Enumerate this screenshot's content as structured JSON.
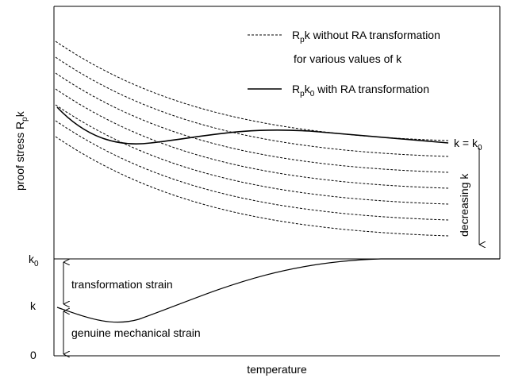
{
  "legend": {
    "dashed": {
      "main": "R",
      "sub": "p",
      "tail": "k  without RA transformation"
    },
    "dashed_second_line": "for various values of  k",
    "solid": {
      "main": "R",
      "sub": "p",
      "mid": "k",
      "sub2": "0",
      "tail": "  with RA transformation"
    }
  },
  "y_axis_label": {
    "main": "proof stress  R",
    "sub": "p",
    "tail": "k"
  },
  "curve_label": {
    "main": "k = k",
    "sub": "0"
  },
  "trend_label": "decreasing  k",
  "lower_axis": {
    "top": {
      "main": "k",
      "sub": "0"
    },
    "middle": "k",
    "bottom": "0"
  },
  "annotations": {
    "upper": "transformation strain",
    "lower": "genuine mechanical strain"
  },
  "x_axis_label": "temperature"
}
